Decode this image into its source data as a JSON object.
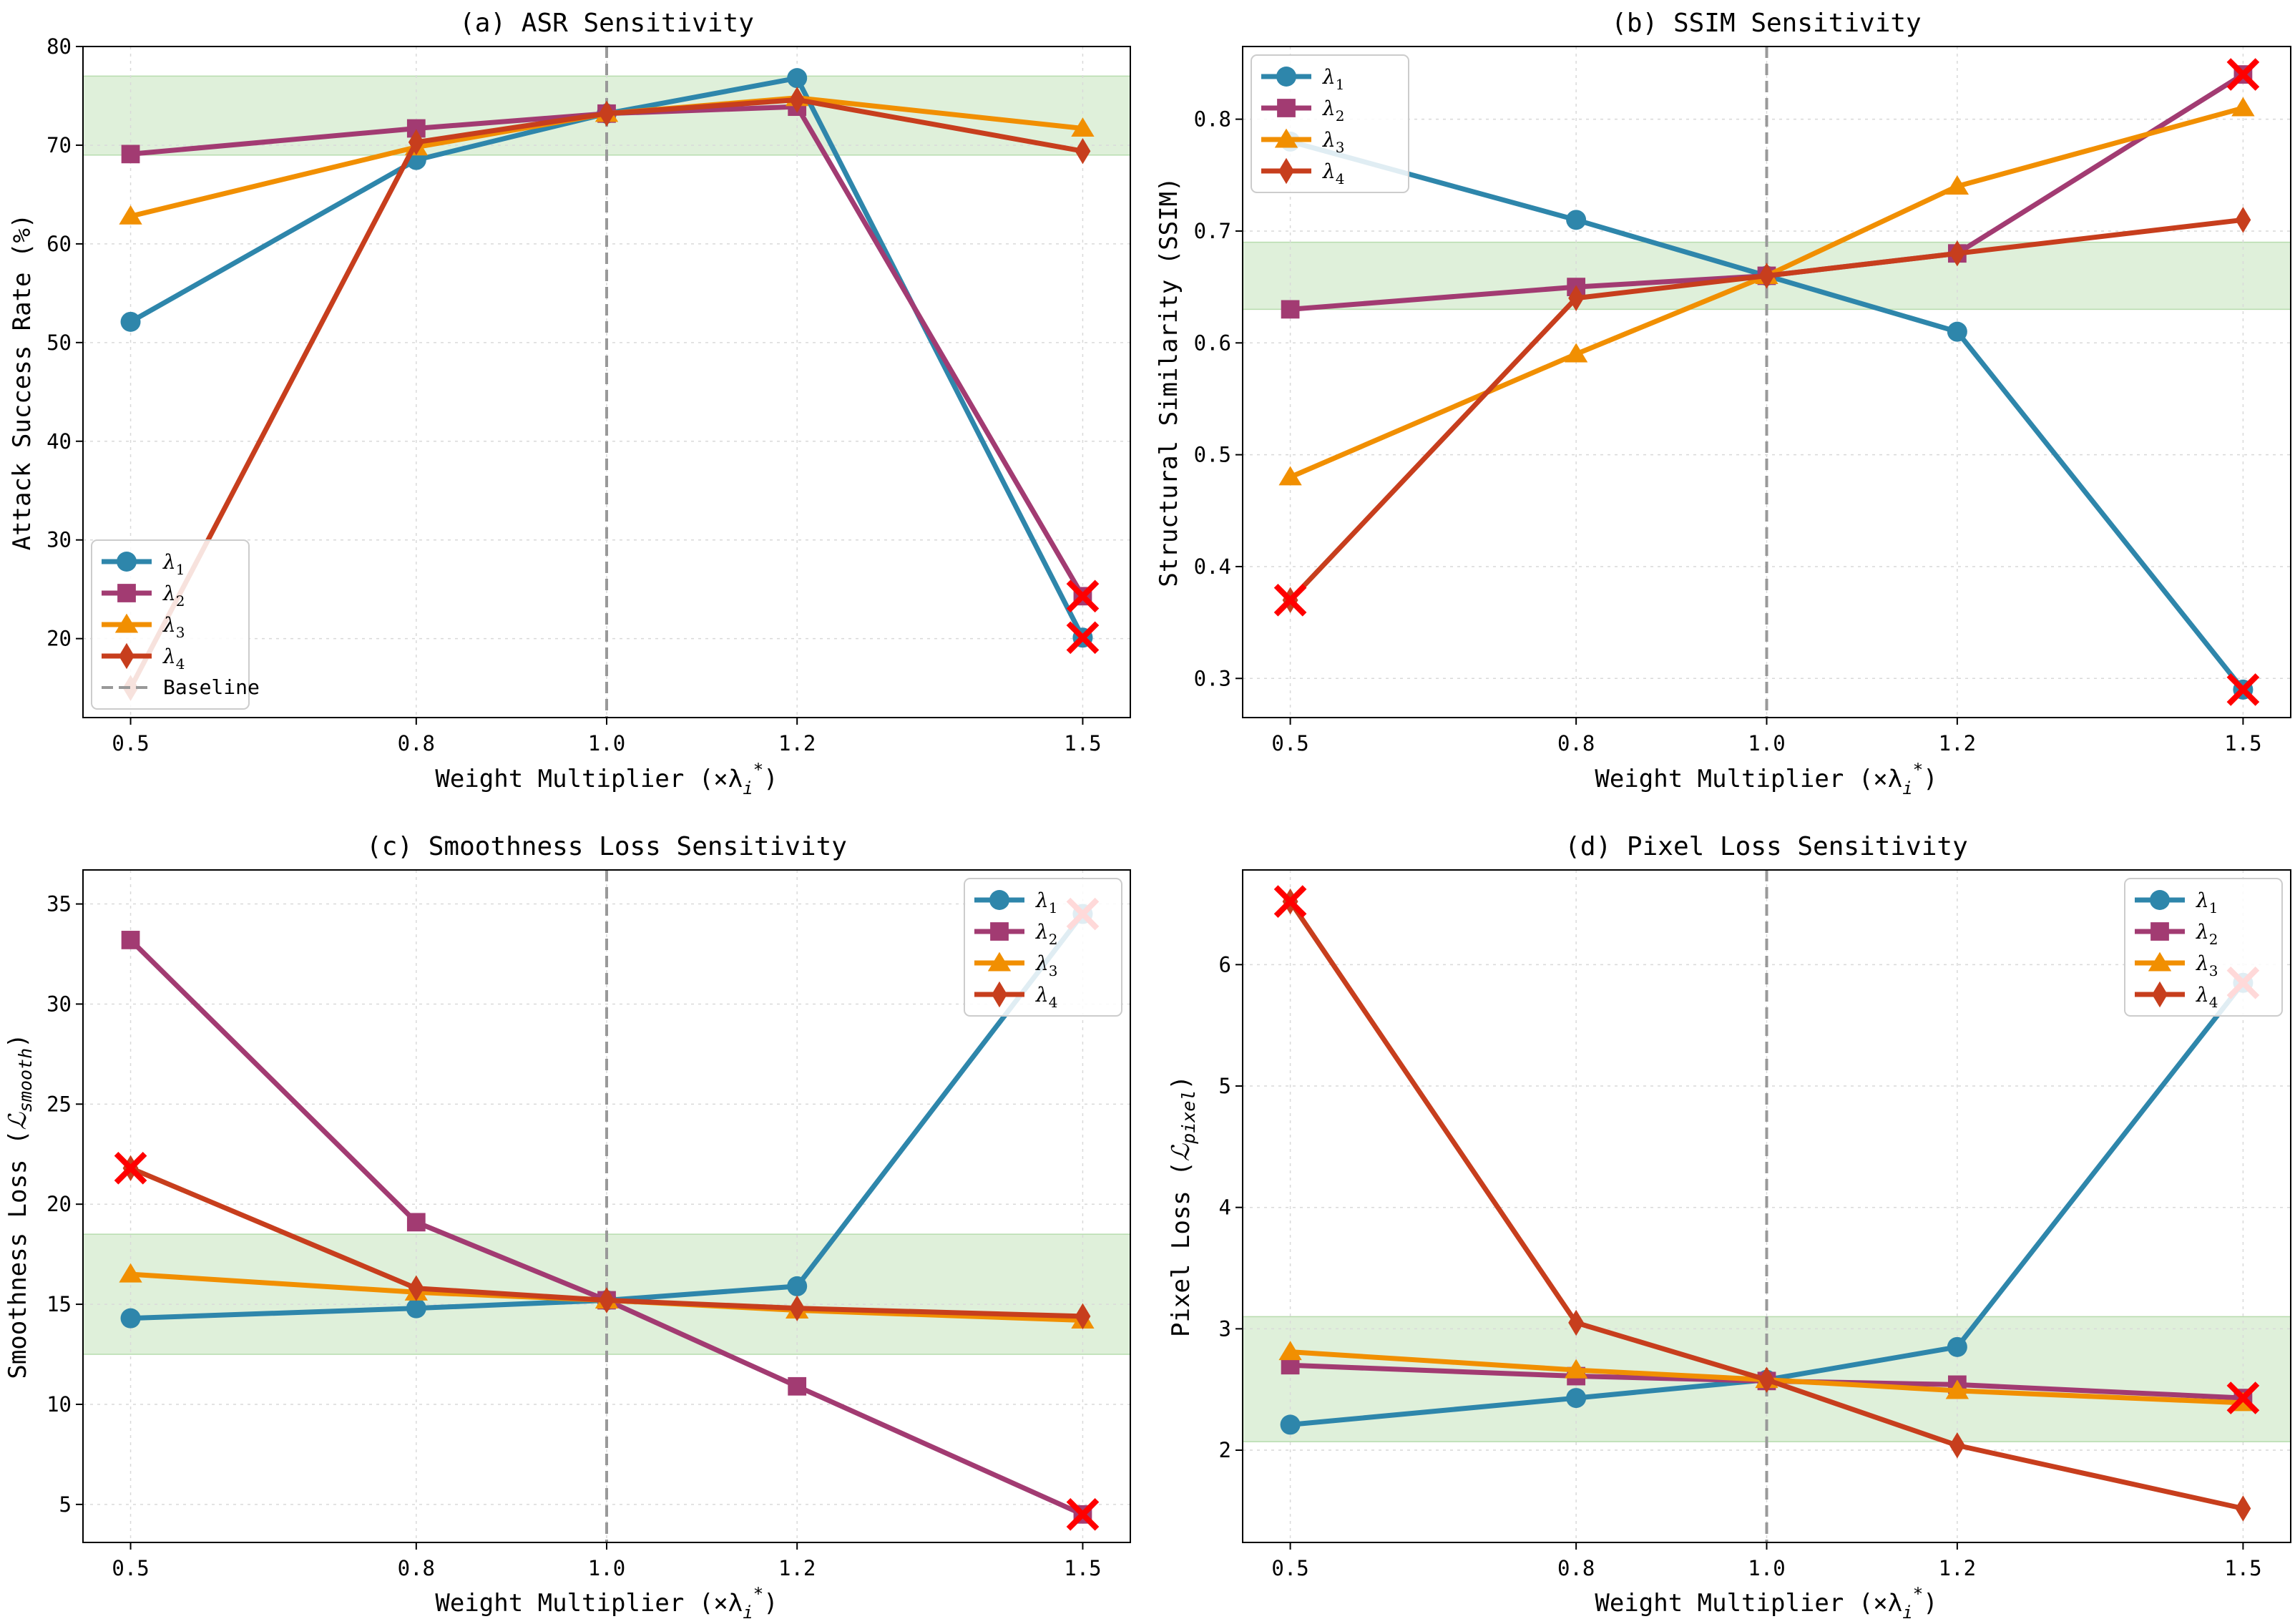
{
  "figure": {
    "colors": {
      "lambda1": "#2E86AB",
      "lambda2": "#A23B72",
      "lambda3": "#F18F01",
      "lambda4": "#C73E1D",
      "band": "#dff0da",
      "baseline": "#999999",
      "fail": "#ff0000"
    },
    "x_label": "Weight Multiplier (×λ",
    "x_label_sub": "i",
    "x_label_sup": "*",
    "x_label_close": ")"
  },
  "chart_data": [
    {
      "id": "asr",
      "type": "line",
      "title": "(a) ASR Sensitivity",
      "ylabel": "Attack Success Rate (%)",
      "ylabel_math": "",
      "x": [
        0.5,
        0.8,
        1.0,
        1.2,
        1.5
      ],
      "x_tick_labels": [
        "0.5",
        "0.8",
        "1.0",
        "1.2",
        "1.5"
      ],
      "xlim": [
        0.45,
        1.55
      ],
      "ylim": [
        12,
        80
      ],
      "y_ticks": [
        20,
        30,
        40,
        50,
        60,
        70,
        80
      ],
      "band": [
        69,
        77
      ],
      "baseline_x": 1.0,
      "legend_position": "lower-left",
      "legend": [
        "λ1",
        "λ2",
        "λ3",
        "λ4",
        "Baseline"
      ],
      "series": [
        {
          "name": "λ1",
          "sub": "1",
          "marker": "circle",
          "values": [
            52.1,
            68.5,
            73.2,
            76.8,
            20.1
          ]
        },
        {
          "name": "λ2",
          "sub": "2",
          "marker": "square",
          "values": [
            69.1,
            71.7,
            73.2,
            73.9,
            24.3
          ]
        },
        {
          "name": "λ3",
          "sub": "3",
          "marker": "triangle",
          "values": [
            62.8,
            69.8,
            73.2,
            74.8,
            71.7
          ]
        },
        {
          "name": "λ4",
          "sub": "4",
          "marker": "diamond",
          "values": [
            15.0,
            70.3,
            73.2,
            74.6,
            69.4
          ]
        }
      ],
      "failures": [
        [
          1.5,
          24.3
        ],
        [
          1.5,
          20.1
        ]
      ]
    },
    {
      "id": "ssim",
      "type": "line",
      "title": "(b) SSIM Sensitivity",
      "ylabel": "Structural Similarity (SSIM)",
      "ylabel_math": "",
      "x": [
        0.5,
        0.8,
        1.0,
        1.2,
        1.5
      ],
      "x_tick_labels": [
        "0.5",
        "0.8",
        "1.0",
        "1.2",
        "1.5"
      ],
      "xlim": [
        0.45,
        1.55
      ],
      "ylim": [
        0.265,
        0.865
      ],
      "y_ticks": [
        0.3,
        0.4,
        0.5,
        0.6,
        0.7,
        0.8
      ],
      "band": [
        0.63,
        0.69
      ],
      "baseline_x": 1.0,
      "legend_position": "upper-left",
      "legend": [
        "λ1",
        "λ2",
        "λ3",
        "λ4"
      ],
      "series": [
        {
          "name": "λ1",
          "sub": "1",
          "marker": "circle",
          "values": [
            0.78,
            0.71,
            0.66,
            0.61,
            0.29
          ]
        },
        {
          "name": "λ2",
          "sub": "2",
          "marker": "square",
          "values": [
            0.63,
            0.65,
            0.66,
            0.68,
            0.84
          ]
        },
        {
          "name": "λ3",
          "sub": "3",
          "marker": "triangle",
          "values": [
            0.48,
            0.59,
            0.66,
            0.74,
            0.81
          ]
        },
        {
          "name": "λ4",
          "sub": "4",
          "marker": "diamond",
          "values": [
            0.37,
            0.64,
            0.66,
            0.68,
            0.71
          ]
        }
      ],
      "failures": [
        [
          1.5,
          0.84
        ],
        [
          0.5,
          0.37
        ],
        [
          1.5,
          0.29
        ]
      ]
    },
    {
      "id": "smooth",
      "type": "line",
      "title": "(c) Smoothness Loss Sensitivity",
      "ylabel": "Smoothness Loss (",
      "ylabel_math": "smooth",
      "x": [
        0.5,
        0.8,
        1.0,
        1.2,
        1.5
      ],
      "x_tick_labels": [
        "0.5",
        "0.8",
        "1.0",
        "1.2",
        "1.5"
      ],
      "xlim": [
        0.45,
        1.55
      ],
      "ylim": [
        3.1,
        36.7
      ],
      "y_ticks": [
        5,
        10,
        15,
        20,
        25,
        30,
        35
      ],
      "band": [
        12.5,
        18.5
      ],
      "baseline_x": 1.0,
      "legend_position": "upper-right",
      "legend": [
        "λ1",
        "λ2",
        "λ3",
        "λ4"
      ],
      "series": [
        {
          "name": "λ1",
          "sub": "1",
          "marker": "circle",
          "values": [
            14.3,
            14.8,
            15.2,
            15.9,
            34.5
          ]
        },
        {
          "name": "λ2",
          "sub": "2",
          "marker": "square",
          "values": [
            33.2,
            19.1,
            15.2,
            10.9,
            4.5
          ]
        },
        {
          "name": "λ3",
          "sub": "3",
          "marker": "triangle",
          "values": [
            16.5,
            15.6,
            15.2,
            14.7,
            14.2
          ]
        },
        {
          "name": "λ4",
          "sub": "4",
          "marker": "diamond",
          "values": [
            21.8,
            15.8,
            15.2,
            14.8,
            14.4
          ]
        }
      ],
      "failures": [
        [
          0.5,
          21.8
        ],
        [
          1.5,
          4.5
        ],
        [
          1.5,
          34.5
        ]
      ]
    },
    {
      "id": "pixel",
      "type": "line",
      "title": "(d) Pixel Loss Sensitivity",
      "ylabel": "Pixel Loss (",
      "ylabel_math": "pixel",
      "x": [
        0.5,
        0.8,
        1.0,
        1.2,
        1.5
      ],
      "x_tick_labels": [
        "0.5",
        "0.8",
        "1.0",
        "1.2",
        "1.5"
      ],
      "xlim": [
        0.45,
        1.55
      ],
      "ylim": [
        1.24,
        6.78
      ],
      "y_ticks": [
        2,
        3,
        4,
        5,
        6
      ],
      "band": [
        2.07,
        3.1
      ],
      "baseline_x": 1.0,
      "legend_position": "upper-right",
      "legend": [
        "λ1",
        "λ2",
        "λ3",
        "λ4"
      ],
      "series": [
        {
          "name": "λ1",
          "sub": "1",
          "marker": "circle",
          "values": [
            2.21,
            2.43,
            2.58,
            2.85,
            5.85
          ]
        },
        {
          "name": "λ2",
          "sub": "2",
          "marker": "square",
          "values": [
            2.7,
            2.61,
            2.57,
            2.54,
            2.43
          ]
        },
        {
          "name": "λ3",
          "sub": "3",
          "marker": "triangle",
          "values": [
            2.81,
            2.66,
            2.58,
            2.49,
            2.39
          ]
        },
        {
          "name": "λ4",
          "sub": "4",
          "marker": "diamond",
          "values": [
            6.52,
            3.05,
            2.58,
            2.04,
            1.52
          ]
        }
      ],
      "failures": [
        [
          0.5,
          6.52
        ],
        [
          1.5,
          2.43
        ],
        [
          1.5,
          5.85
        ]
      ]
    }
  ]
}
